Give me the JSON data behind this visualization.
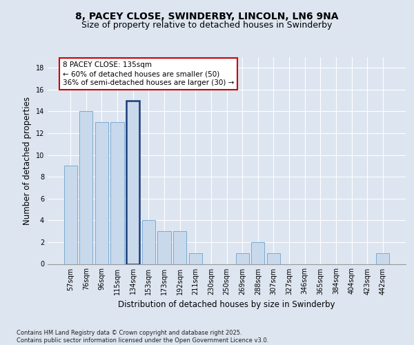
{
  "title_line1": "8, PACEY CLOSE, SWINDERBY, LINCOLN, LN6 9NA",
  "title_line2": "Size of property relative to detached houses in Swinderby",
  "xlabel": "Distribution of detached houses by size in Swinderby",
  "ylabel": "Number of detached properties",
  "categories": [
    "57sqm",
    "76sqm",
    "96sqm",
    "115sqm",
    "134sqm",
    "153sqm",
    "173sqm",
    "192sqm",
    "211sqm",
    "230sqm",
    "250sqm",
    "269sqm",
    "288sqm",
    "307sqm",
    "327sqm",
    "346sqm",
    "365sqm",
    "384sqm",
    "404sqm",
    "423sqm",
    "442sqm"
  ],
  "values": [
    9,
    14,
    13,
    13,
    15,
    4,
    3,
    3,
    1,
    0,
    0,
    1,
    2,
    1,
    0,
    0,
    0,
    0,
    0,
    0,
    1
  ],
  "bar_color": "#c9d9ec",
  "bar_edge_color": "#7aaad0",
  "highlight_bar_index": 4,
  "highlight_bar_edge_color": "#1a3a7a",
  "annotation_text": "8 PACEY CLOSE: 135sqm\n← 60% of detached houses are smaller (50)\n36% of semi-detached houses are larger (30) →",
  "annotation_box_color": "white",
  "annotation_box_edge_color": "#cc0000",
  "ylim": [
    0,
    19
  ],
  "yticks": [
    0,
    2,
    4,
    6,
    8,
    10,
    12,
    14,
    16,
    18
  ],
  "bg_color": "#dde5f0",
  "plot_bg_color": "#dde5f0",
  "footer_text": "Contains HM Land Registry data © Crown copyright and database right 2025.\nContains public sector information licensed under the Open Government Licence v3.0.",
  "title_fontsize": 10,
  "subtitle_fontsize": 9,
  "axis_label_fontsize": 8.5,
  "tick_fontsize": 7,
  "annotation_fontsize": 7.5,
  "footer_fontsize": 6
}
